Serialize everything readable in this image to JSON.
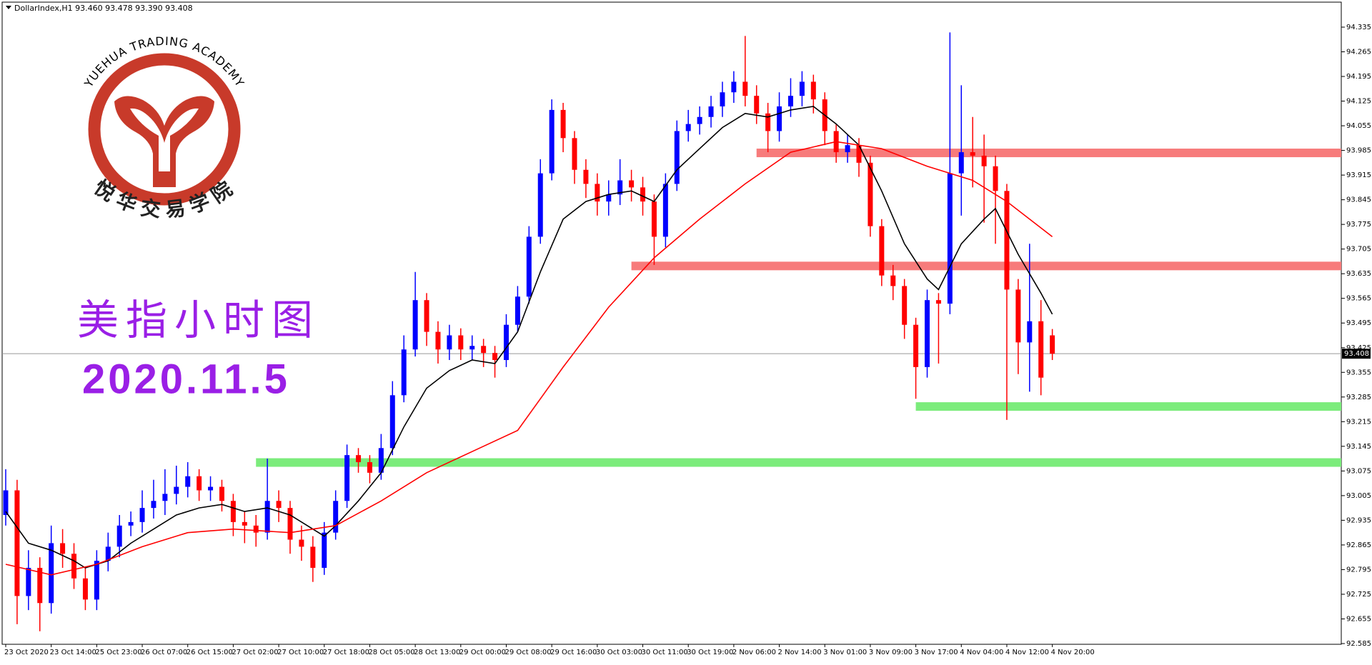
{
  "chart_data": {
    "type": "candlestick",
    "title": "DollarIndex,H1  93.460 93.478 93.390 93.408",
    "watermark": {
      "en": "YUEHUA TRADING ACADEMY",
      "zh": "悦华交易学院"
    },
    "annotations": [
      "美指小时图",
      "2020.11.5"
    ],
    "up_color": "#0000ff",
    "down_color": "#ff0000",
    "ylim": [
      92.585,
      94.335
    ],
    "yticks": [
      92.585,
      92.655,
      92.725,
      92.795,
      92.865,
      92.935,
      93.005,
      93.075,
      93.145,
      93.215,
      93.285,
      93.355,
      93.425,
      93.495,
      93.565,
      93.635,
      93.705,
      93.775,
      93.845,
      93.915,
      93.985,
      94.055,
      94.125,
      94.195,
      94.265,
      94.335
    ],
    "xticks": [
      {
        "value": 0,
        "label": "23 Oct 2020"
      },
      {
        "value": 4,
        "label": "23 Oct 14:00"
      },
      {
        "value": 8,
        "label": "25 Oct 23:00"
      },
      {
        "value": 12,
        "label": "26 Oct 07:00"
      },
      {
        "value": 16,
        "label": "26 Oct 15:00"
      },
      {
        "value": 20,
        "label": "27 Oct 02:00"
      },
      {
        "value": 24,
        "label": "27 Oct 10:00"
      },
      {
        "value": 28,
        "label": "27 Oct 18:00"
      },
      {
        "value": 32,
        "label": "28 Oct 05:00"
      },
      {
        "value": 36,
        "label": "28 Oct 13:00"
      },
      {
        "value": 40,
        "label": "29 Oct 00:00"
      },
      {
        "value": 44,
        "label": "29 Oct 08:00"
      },
      {
        "value": 48,
        "label": "29 Oct 16:00"
      },
      {
        "value": 52,
        "label": "30 Oct 03:00"
      },
      {
        "value": 56,
        "label": "30 Oct 11:00"
      },
      {
        "value": 60,
        "label": "30 Oct 19:00"
      },
      {
        "value": 64,
        "label": "2 Nov 06:00"
      },
      {
        "value": 68,
        "label": "2 Nov 14:00"
      },
      {
        "value": 72,
        "label": "3 Nov 01:00"
      },
      {
        "value": 76,
        "label": "3 Nov 09:00"
      },
      {
        "value": 80,
        "label": "3 Nov 17:00"
      },
      {
        "value": 84,
        "label": "4 Nov 04:00"
      },
      {
        "value": 88,
        "label": "4 Nov 12:00"
      },
      {
        "value": 92,
        "label": "4 Nov 20:00"
      }
    ],
    "candles": [
      [
        92.95,
        93.08,
        92.92,
        93.02
      ],
      [
        93.02,
        93.05,
        92.64,
        92.72
      ],
      [
        92.72,
        92.85,
        92.68,
        92.8
      ],
      [
        92.8,
        92.83,
        92.62,
        92.7
      ],
      [
        92.7,
        92.92,
        92.67,
        92.87
      ],
      [
        92.87,
        92.91,
        92.8,
        92.84
      ],
      [
        92.84,
        92.87,
        92.74,
        92.77
      ],
      [
        92.77,
        92.8,
        92.68,
        92.71
      ],
      [
        92.71,
        92.85,
        92.68,
        92.82
      ],
      [
        92.82,
        92.9,
        92.79,
        92.86
      ],
      [
        92.86,
        92.95,
        92.83,
        92.92
      ],
      [
        92.92,
        92.96,
        92.89,
        92.93
      ],
      [
        92.93,
        93.02,
        92.9,
        92.97
      ],
      [
        92.97,
        93.05,
        92.94,
        92.99
      ],
      [
        92.99,
        93.08,
        92.95,
        93.01
      ],
      [
        93.01,
        93.09,
        92.98,
        93.03
      ],
      [
        93.03,
        93.1,
        93.0,
        93.06
      ],
      [
        93.06,
        93.08,
        92.99,
        93.02
      ],
      [
        93.02,
        93.06,
        92.99,
        93.03
      ],
      [
        93.03,
        93.05,
        92.96,
        92.99
      ],
      [
        92.99,
        93.01,
        92.89,
        92.93
      ],
      [
        92.93,
        92.96,
        92.87,
        92.92
      ],
      [
        92.92,
        92.95,
        92.86,
        92.9
      ],
      [
        92.9,
        93.11,
        92.88,
        92.99
      ],
      [
        92.99,
        93.02,
        92.93,
        92.97
      ],
      [
        92.97,
        92.99,
        92.84,
        92.88
      ],
      [
        92.88,
        92.92,
        92.82,
        92.86
      ],
      [
        92.86,
        92.89,
        92.76,
        92.8
      ],
      [
        92.8,
        92.93,
        92.78,
        92.9
      ],
      [
        92.9,
        93.02,
        92.88,
        92.99
      ],
      [
        92.99,
        93.15,
        92.97,
        93.12
      ],
      [
        93.12,
        93.14,
        93.07,
        93.1
      ],
      [
        93.1,
        93.12,
        93.04,
        93.07
      ],
      [
        93.07,
        93.18,
        93.05,
        93.14
      ],
      [
        93.14,
        93.33,
        93.12,
        93.29
      ],
      [
        93.29,
        93.46,
        93.27,
        93.42
      ],
      [
        93.42,
        93.64,
        93.4,
        93.56
      ],
      [
        93.56,
        93.58,
        93.43,
        93.47
      ],
      [
        93.47,
        93.5,
        93.38,
        93.42
      ],
      [
        93.42,
        93.49,
        93.39,
        93.46
      ],
      [
        93.46,
        93.48,
        93.39,
        93.42
      ],
      [
        93.42,
        93.46,
        93.39,
        93.43
      ],
      [
        93.43,
        93.45,
        93.37,
        93.41
      ],
      [
        93.41,
        93.43,
        93.34,
        93.39
      ],
      [
        93.39,
        93.52,
        93.37,
        93.49
      ],
      [
        93.49,
        93.6,
        93.47,
        93.57
      ],
      [
        93.57,
        93.77,
        93.55,
        93.74
      ],
      [
        93.74,
        93.96,
        93.72,
        93.92
      ],
      [
        93.92,
        94.13,
        93.9,
        94.1
      ],
      [
        94.1,
        94.12,
        93.98,
        94.02
      ],
      [
        94.02,
        94.04,
        93.89,
        93.93
      ],
      [
        93.93,
        93.96,
        93.85,
        93.89
      ],
      [
        93.89,
        93.92,
        93.8,
        93.84
      ],
      [
        93.84,
        93.9,
        93.8,
        93.86
      ],
      [
        93.86,
        93.96,
        93.83,
        93.9
      ],
      [
        93.9,
        93.93,
        93.84,
        93.88
      ],
      [
        93.88,
        93.91,
        93.8,
        93.84
      ],
      [
        93.84,
        93.86,
        93.66,
        93.74
      ],
      [
        93.74,
        93.92,
        93.71,
        93.89
      ],
      [
        93.89,
        94.07,
        93.87,
        94.04
      ],
      [
        94.04,
        94.1,
        94.01,
        94.06
      ],
      [
        94.06,
        94.11,
        94.03,
        94.08
      ],
      [
        94.08,
        94.14,
        94.05,
        94.11
      ],
      [
        94.11,
        94.18,
        94.08,
        94.15
      ],
      [
        94.15,
        94.21,
        94.12,
        94.18
      ],
      [
        94.18,
        94.31,
        94.11,
        94.14
      ],
      [
        94.14,
        94.17,
        94.06,
        94.09
      ],
      [
        94.09,
        94.12,
        93.98,
        94.04
      ],
      [
        94.04,
        94.15,
        94.01,
        94.11
      ],
      [
        94.11,
        94.19,
        94.08,
        94.14
      ],
      [
        94.14,
        94.21,
        94.11,
        94.18
      ],
      [
        94.18,
        94.2,
        94.09,
        94.13
      ],
      [
        94.13,
        94.15,
        94.0,
        94.04
      ],
      [
        94.04,
        94.06,
        93.95,
        93.98
      ],
      [
        93.98,
        94.03,
        93.95,
        94.0
      ],
      [
        94.0,
        94.02,
        93.91,
        93.95
      ],
      [
        93.95,
        93.97,
        93.74,
        93.77
      ],
      [
        93.77,
        93.79,
        93.6,
        93.63
      ],
      [
        93.63,
        93.66,
        93.56,
        93.6
      ],
      [
        93.6,
        93.62,
        93.45,
        93.49
      ],
      [
        93.49,
        93.51,
        93.28,
        93.37
      ],
      [
        93.37,
        93.59,
        93.34,
        93.56
      ],
      [
        93.56,
        93.58,
        93.38,
        93.55
      ],
      [
        93.55,
        94.32,
        93.52,
        93.92
      ],
      [
        93.92,
        94.17,
        93.8,
        93.98
      ],
      [
        93.98,
        94.08,
        93.88,
        93.97
      ],
      [
        93.97,
        94.03,
        93.78,
        93.94
      ],
      [
        93.94,
        93.97,
        93.72,
        93.87
      ],
      [
        93.87,
        93.89,
        93.22,
        93.59
      ],
      [
        93.59,
        93.62,
        93.35,
        93.44
      ],
      [
        93.44,
        93.72,
        93.3,
        93.5
      ],
      [
        93.5,
        93.56,
        93.29,
        93.34
      ],
      [
        93.46,
        93.478,
        93.39,
        93.408
      ]
    ],
    "series": [
      {
        "color": "#000000",
        "x": [
          0,
          2,
          4,
          6,
          7,
          9,
          11,
          13,
          15,
          17,
          19,
          21,
          23,
          25,
          27,
          28,
          29,
          31,
          33,
          35,
          37,
          39,
          41,
          43,
          45,
          47,
          49,
          51,
          53,
          55,
          57,
          59,
          61,
          63,
          65,
          67,
          69,
          71,
          73,
          75,
          77,
          79,
          81,
          82,
          84,
          86,
          87,
          89,
          91,
          92
        ],
        "values": [
          92.96,
          92.87,
          92.85,
          92.82,
          92.8,
          92.82,
          92.87,
          92.91,
          92.95,
          92.97,
          92.98,
          92.96,
          92.97,
          92.95,
          92.91,
          92.89,
          92.92,
          92.99,
          93.07,
          93.2,
          93.31,
          93.36,
          93.39,
          93.38,
          93.47,
          93.64,
          93.79,
          93.84,
          93.86,
          93.87,
          93.84,
          93.93,
          93.99,
          94.05,
          94.09,
          94.08,
          94.1,
          94.11,
          94.06,
          94.0,
          93.87,
          93.72,
          93.62,
          93.59,
          93.72,
          93.79,
          93.82,
          93.69,
          93.58,
          93.52
        ]
      },
      {
        "color": "#ff0000",
        "x": [
          0,
          4,
          8,
          12,
          16,
          20,
          25,
          29,
          33,
          37,
          41,
          45,
          49,
          53,
          57,
          61,
          65,
          69,
          73,
          77,
          81,
          85,
          88,
          92
        ],
        "values": [
          92.81,
          92.78,
          92.81,
          92.86,
          92.9,
          92.91,
          92.9,
          92.92,
          92.99,
          93.07,
          93.13,
          93.19,
          93.37,
          93.54,
          93.68,
          93.79,
          93.89,
          93.98,
          94.01,
          93.99,
          93.94,
          93.9,
          93.84,
          93.74
        ]
      }
    ],
    "zones": [
      {
        "value": 93.978,
        "start": 66,
        "color": "#f77b7b"
      },
      {
        "value": 93.657,
        "start": 55,
        "color": "#f77b7b"
      },
      {
        "value": 93.258,
        "start": 80,
        "color": "#7cec7c"
      },
      {
        "value": 93.099,
        "start": 22,
        "color": "#7cec7c"
      }
    ],
    "price_line": 93.408
  }
}
